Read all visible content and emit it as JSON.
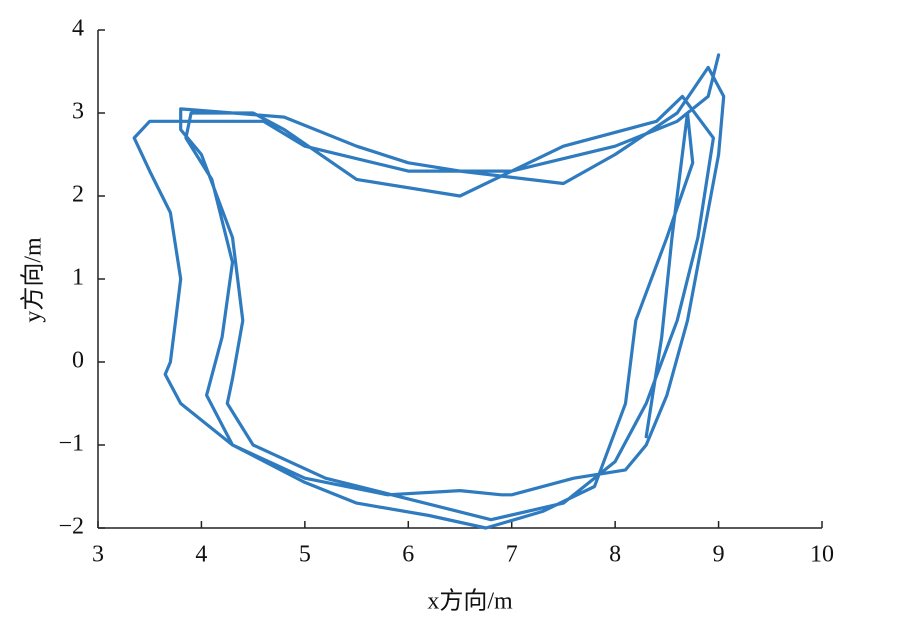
{
  "chart_data": {
    "type": "line",
    "x_label": "x方向/m",
    "y_label": "y方向/m",
    "xlim": [
      3,
      10
    ],
    "xticks": [
      3,
      4,
      5,
      6,
      7,
      8,
      9,
      10
    ],
    "ylim": [
      -2,
      4
    ],
    "yticks": [
      {
        "value": -2,
        "label": "−2"
      },
      {
        "value": -1,
        "label": "−1"
      },
      0,
      1,
      2,
      3,
      4
    ],
    "x": [
      9.0,
      8.9,
      8.6,
      8.0,
      7.0,
      6.0,
      5.0,
      4.6,
      3.5,
      3.35,
      3.5,
      3.7,
      3.8,
      3.75,
      3.7,
      3.65,
      3.8,
      4.3,
      5.0,
      5.8,
      6.5,
      6.9,
      7.0,
      7.6,
      8.1,
      8.3,
      8.5,
      8.7,
      8.85,
      9.0,
      9.05,
      8.9,
      8.6,
      8.0,
      7.5,
      6.5,
      6.0,
      5.5,
      4.8,
      3.8,
      3.8,
      4.0,
      4.3,
      4.4,
      4.3,
      4.25,
      4.5,
      5.2,
      6.0,
      6.8,
      7.5,
      8.0,
      8.3,
      8.6,
      8.8,
      8.95,
      8.65,
      8.4,
      7.5,
      6.5,
      5.5,
      4.8,
      4.5,
      3.9,
      3.85,
      4.1,
      4.3,
      4.2,
      4.05,
      4.3,
      5.0,
      5.5,
      6.2,
      6.75,
      7.3,
      7.8,
      8.1,
      8.2,
      8.5,
      8.75,
      8.7,
      8.55,
      8.45,
      8.3
    ],
    "series": [
      {
        "color": "#2f7bc0",
        "values": [
          3.7,
          3.2,
          2.9,
          2.6,
          2.3,
          2.3,
          2.6,
          2.9,
          2.9,
          2.7,
          2.3,
          1.8,
          1.0,
          0.5,
          0.0,
          -0.15,
          -0.5,
          -1.0,
          -1.4,
          -1.6,
          -1.55,
          -1.6,
          -1.6,
          -1.4,
          -1.3,
          -1.0,
          -0.4,
          0.5,
          1.5,
          2.5,
          3.2,
          3.55,
          3.0,
          2.5,
          2.15,
          2.3,
          2.4,
          2.6,
          2.95,
          3.05,
          2.8,
          2.5,
          1.5,
          0.5,
          -0.2,
          -0.5,
          -1.0,
          -1.4,
          -1.65,
          -1.9,
          -1.7,
          -1.2,
          -0.5,
          0.5,
          1.5,
          2.7,
          3.2,
          2.9,
          2.6,
          2.0,
          2.2,
          2.8,
          3.0,
          3.0,
          2.7,
          2.2,
          1.2,
          0.3,
          -0.4,
          -1.0,
          -1.45,
          -1.7,
          -1.85,
          -2.0,
          -1.8,
          -1.5,
          -0.5,
          0.5,
          1.5,
          2.4,
          3.0,
          1.5,
          0.3,
          -0.9
        ]
      }
    ]
  }
}
